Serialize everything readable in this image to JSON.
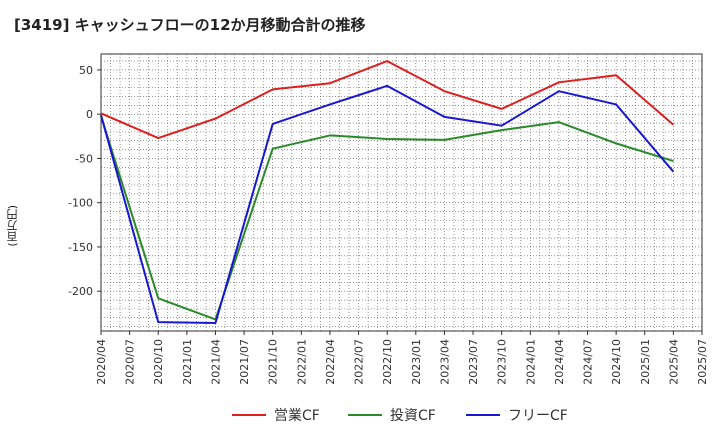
{
  "chart_data": {
    "type": "line",
    "title": "[3419]  キャッシュフローの12か月移動合計の推移",
    "xlabel": "",
    "ylabel": "(百万円)",
    "ylim": [
      -245,
      68
    ],
    "yticks": [
      50,
      0,
      -50,
      -100,
      -150,
      -200
    ],
    "xticks": [
      "2020/04",
      "2020/07",
      "2020/10",
      "2021/01",
      "2021/04",
      "2021/07",
      "2021/10",
      "2022/01",
      "2022/04",
      "2022/07",
      "2022/10",
      "2023/01",
      "2023/04",
      "2023/07",
      "2023/10",
      "2024/01",
      "2024/04",
      "2024/07",
      "2024/10",
      "2025/01",
      "2025/04",
      "2025/07"
    ],
    "x": [
      "2020/04",
      "2020/10",
      "2021/04",
      "2021/10",
      "2022/04",
      "2022/10",
      "2023/04",
      "2023/10",
      "2024/04",
      "2024/10",
      "2025/04"
    ],
    "grid": true,
    "legend_position": "bottom",
    "series": [
      {
        "name": "営業CF",
        "color": "#dd1f1f",
        "values": [
          1,
          -27,
          -5,
          28,
          35,
          60,
          26,
          6,
          36,
          44,
          -12
        ]
      },
      {
        "name": "投資CF",
        "color": "#2a8a2a",
        "values": [
          -2,
          -208,
          -232,
          -39,
          -24,
          -28,
          -29,
          -18,
          -9,
          -33,
          -53
        ]
      },
      {
        "name": "フリーCF",
        "color": "#1818d0",
        "values": [
          -1,
          -235,
          -236,
          -11,
          11,
          32,
          -3,
          -13,
          26,
          11,
          -65
        ]
      }
    ]
  }
}
